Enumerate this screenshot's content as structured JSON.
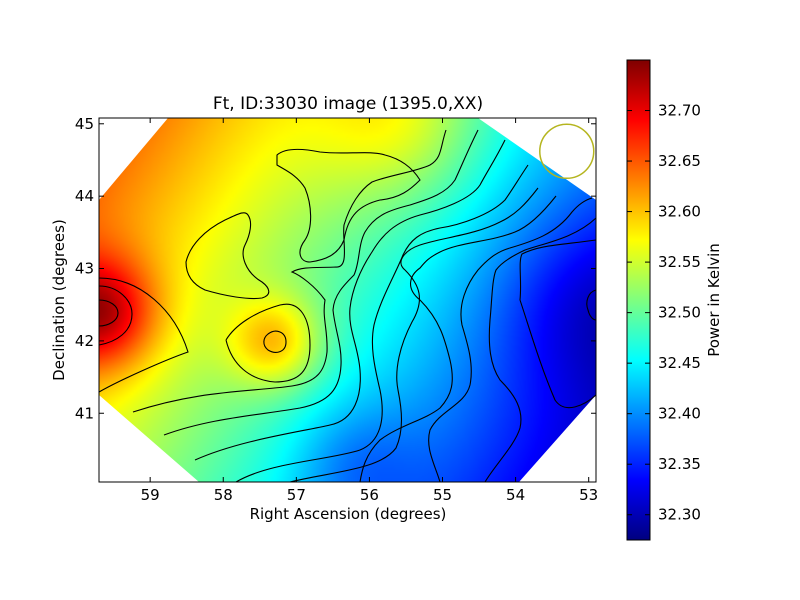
{
  "chart_data": {
    "type": "heatmap",
    "title": "Ft, ID:33030 image (1395.0,XX)",
    "xlabel": "Right Ascension (degrees)",
    "ylabel": "Declination (degrees)",
    "xlim": [
      59.7,
      52.9
    ],
    "ylim": [
      40.05,
      45.08
    ],
    "x_ticks": [
      59,
      58,
      57,
      56,
      55,
      54,
      53
    ],
    "y_ticks": [
      41,
      42,
      43,
      44,
      45
    ],
    "colorbar": {
      "label": "Power in Kelvin",
      "range": [
        32.275,
        32.75
      ],
      "ticks": [
        "32.30",
        "32.35",
        "32.40",
        "32.45",
        "32.50",
        "32.55",
        "32.60",
        "32.65",
        "32.70"
      ],
      "colormap": "jet"
    },
    "contour_interval": 0.05,
    "grid": false,
    "features": [
      {
        "name": "max_left_edge",
        "ra": 59.65,
        "dec": 42.38,
        "value": 32.74
      },
      {
        "name": "local_max_center",
        "ra": 57.3,
        "dec": 41.98,
        "value": 32.68
      },
      {
        "name": "min_right_edge",
        "ra": 53.0,
        "dec": 42.5,
        "value": 32.28
      },
      {
        "name": "high_top",
        "ra": 55.6,
        "dec": 45.0,
        "value": 32.63
      },
      {
        "name": "low_bottom",
        "ra": 54.4,
        "dec": 40.3,
        "value": 32.4
      }
    ],
    "beam_circle": {
      "ra": 53.3,
      "dec": 44.62,
      "color": "#b5b51f"
    }
  }
}
